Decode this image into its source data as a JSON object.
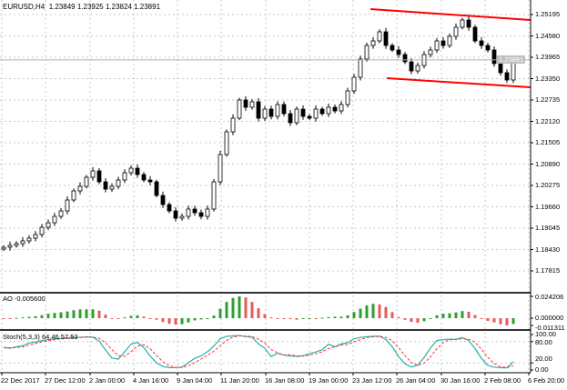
{
  "header": {
    "symbol": "EURUSD,H4",
    "ohlc": "1.23849 1.23925 1.23824 1.23891"
  },
  "current_price": "1.23891",
  "colors": {
    "bull": "#000000",
    "bear": "#000000",
    "trendline": "#ff0000",
    "ao_up": "#2ca02c",
    "ao_down": "#e8595a",
    "stoch_main": "#20b2aa",
    "stoch_signal": "#ff3030",
    "grid": "#c8c8c8"
  },
  "chart_data": [
    {
      "type": "candlestick",
      "price_ticks": [
        "1.25195",
        "1.24580",
        "1.23965",
        "1.23350",
        "1.22735",
        "1.22120",
        "1.21505",
        "1.20890",
        "1.20275",
        "1.19660",
        "1.19045",
        "1.18430",
        "1.17815"
      ],
      "time_labels": [
        "22 Dec 2017",
        "27 Dec 12:00",
        "2 Jan 00:00",
        "4 Jan 16:00",
        "9 Jan 04:00",
        "11 Jan 20:00",
        "16 Jan 08:00",
        "19 Jan 00:00",
        "23 Jan 12:00",
        "26 Jan 04:00",
        "30 Jan 16:00",
        "2 Feb 08:00",
        "6 Feb 20:00"
      ],
      "closes": [
        1.18495,
        1.18548,
        1.186,
        1.18679,
        1.18757,
        1.18862,
        1.19071,
        1.19202,
        1.19385,
        1.19542,
        1.19856,
        1.20118,
        1.20249,
        1.20511,
        1.20694,
        1.2038,
        1.2017,
        1.20249,
        1.20432,
        1.20641,
        1.20772,
        1.20589,
        1.20432,
        1.2038,
        1.19987,
        1.19725,
        1.19542,
        1.19333,
        1.19385,
        1.19595,
        1.1949,
        1.19385,
        1.19595,
        1.2038,
        1.21165,
        1.21819,
        1.22212,
        1.22735,
        1.22526,
        1.22683,
        1.22212,
        1.22473,
        1.22264,
        1.22604,
        1.22342,
        1.22081,
        1.22473,
        1.22264,
        1.22212,
        1.22473,
        1.22342,
        1.22526,
        1.22421,
        1.22604,
        1.22997,
        1.23389,
        1.23913,
        1.24305,
        1.24436,
        1.24698,
        1.24305,
        1.24174,
        1.24044,
        1.23834,
        1.23572,
        1.23729,
        1.24044,
        1.24174,
        1.24436,
        1.24305,
        1.24567,
        1.24829,
        1.25038,
        1.24829,
        1.24436,
        1.24305,
        1.24174,
        1.23782,
        1.2352,
        1.23311,
        1.23891
      ],
      "trendlines": [
        {
          "from_price": 1.25352,
          "to_price": 1.25038
        },
        {
          "from_price": 1.23363,
          "to_price": 1.23101
        }
      ]
    },
    {
      "type": "histogram",
      "label": "AO -0.005600",
      "ticks": [
        "0.024206",
        "0.000000",
        "-0.011311"
      ],
      "ylim": [
        -0.011311,
        0.024206
      ]
    },
    {
      "type": "line",
      "label": "Stoch(5,3,3) 64.46 57.52",
      "ticks": [
        "100.00",
        "80.00",
        "20.00",
        "0.00"
      ],
      "levels": [
        20,
        80
      ],
      "ylim": [
        0,
        100
      ]
    }
  ]
}
